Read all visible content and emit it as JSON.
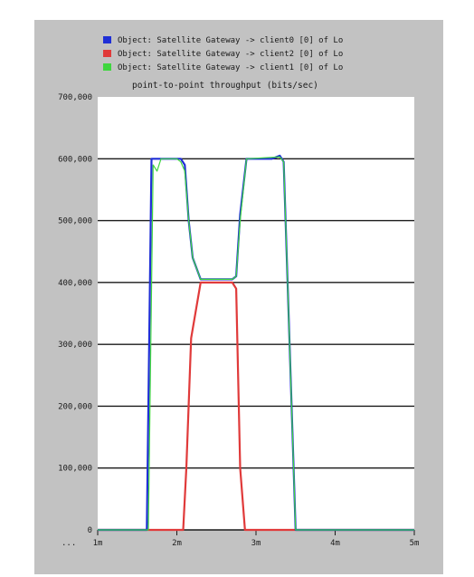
{
  "colors": {
    "panel_bg": "#c2c2c2",
    "plot_bg": "#ffffff",
    "grid": "#1a1a1a",
    "text": "#1a1a1a"
  },
  "chart_data": {
    "type": "line",
    "title": "point-to-point throughput (bits/sec)",
    "xlabel": "",
    "ylabel": "",
    "xlim": [
      1,
      5
    ],
    "ylim": [
      0,
      700000
    ],
    "x_unit": "m",
    "yticks": [
      0,
      100000,
      200000,
      300000,
      400000,
      500000,
      600000,
      700000
    ],
    "ytick_labels": [
      "0",
      "100,000",
      "200,000",
      "300,000",
      "400,000",
      "500,000",
      "600,000",
      "700,000"
    ],
    "xticks": [
      1,
      2,
      3,
      4,
      5
    ],
    "xtick_labels": [
      "1m",
      "2m",
      "3m",
      "4m",
      "5m"
    ],
    "x_edge_label": "...",
    "grid": "horizontal",
    "legend_position": "top",
    "series": [
      {
        "name": "Object: Satellite Gateway -> client0 [0] of Lo",
        "color": "#1f2fd6",
        "x": [
          1.0,
          1.62,
          1.68,
          1.72,
          1.8,
          2.05,
          2.1,
          2.15,
          2.2,
          2.3,
          2.7,
          2.75,
          2.8,
          2.88,
          3.2,
          3.3,
          3.35,
          3.5,
          5.0
        ],
        "y": [
          0,
          0,
          600000,
          600000,
          600000,
          600000,
          590000,
          500000,
          440000,
          405000,
          405000,
          410000,
          510000,
          600000,
          600000,
          605000,
          595000,
          0,
          0
        ]
      },
      {
        "name": "Object: Satellite Gateway -> client2 [0] of Lo",
        "color": "#e03a3a",
        "x": [
          1.0,
          1.62,
          2.08,
          2.12,
          2.18,
          2.3,
          2.7,
          2.75,
          2.8,
          2.86,
          3.4,
          5.0
        ],
        "y": [
          0,
          0,
          0,
          100000,
          310000,
          400000,
          400000,
          390000,
          100000,
          0,
          0,
          0
        ]
      },
      {
        "name": "Object: Satellite Gateway -> client1 [0] of Lo",
        "color": "#3fd63f",
        "x": [
          1.0,
          1.64,
          1.7,
          1.75,
          1.8,
          2.0,
          2.05,
          2.1,
          2.15,
          2.2,
          2.3,
          2.7,
          2.75,
          2.8,
          2.88,
          3.3,
          3.35,
          3.5,
          5.0
        ],
        "y": [
          0,
          0,
          590000,
          580000,
          600000,
          600000,
          595000,
          580000,
          500000,
          440000,
          405000,
          405000,
          410000,
          500000,
          600000,
          603000,
          595000,
          0,
          0
        ]
      }
    ]
  }
}
